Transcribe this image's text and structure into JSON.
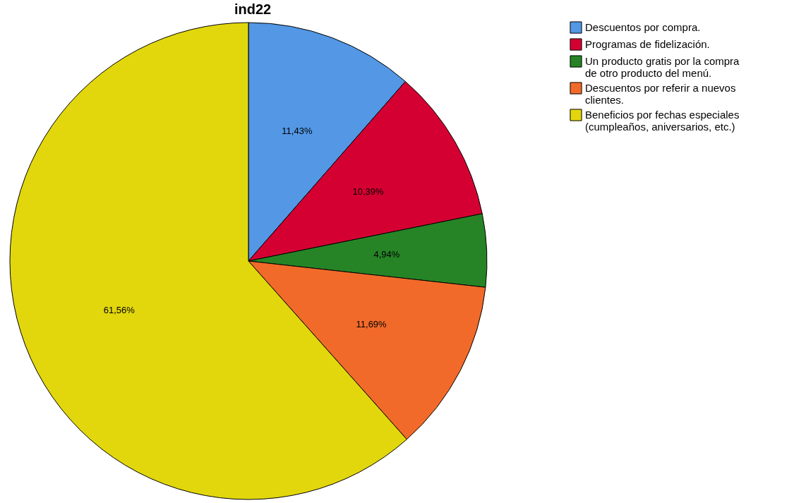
{
  "chart_data": {
    "type": "pie",
    "title": "ind22",
    "categories": [
      "Descuentos por compra.",
      "Programas de fidelización.",
      "Un producto gratis por la compra de otro producto del menú.",
      "Descuentos por referir a nuevos clientes.",
      "Beneficios por fechas especiales (cumpleaños, aniversarios, etc.)"
    ],
    "values": [
      11.43,
      10.39,
      4.94,
      11.69,
      61.56
    ],
    "value_labels": [
      "11,43%",
      "10,39%",
      "4,94%",
      "11,69%",
      "61,56%"
    ],
    "colors": [
      "#5397e5",
      "#d50032",
      "#268426",
      "#f26a2a",
      "#e2d70d"
    ],
    "legend": "top right"
  }
}
